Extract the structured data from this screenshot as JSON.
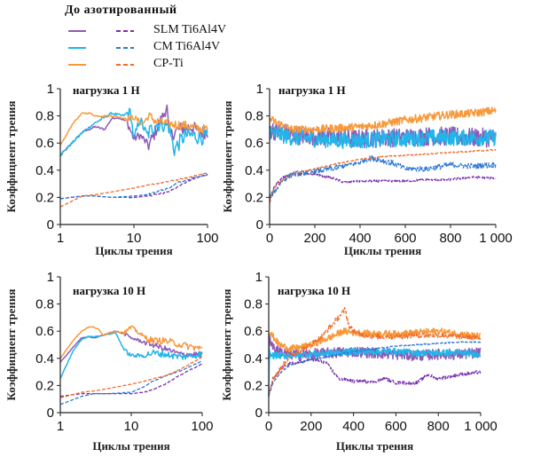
{
  "legend": {
    "title": "До  азотированный",
    "entries": [
      {
        "label": "SLM Ti6Al4V",
        "solid_color": "#8e5bb5",
        "dashed_color": "#7a2fb0"
      },
      {
        "label": "CM Ti6Al4V",
        "solid_color": "#22b5ea",
        "dashed_color": "#2c78d4"
      },
      {
        "label": "CP-Ti",
        "solid_color": "#f7993b",
        "dashed_color": "#f26b2a"
      }
    ]
  },
  "chart_data": [
    {
      "type": "line",
      "panel": "top-left",
      "title": "нагрузка 1 Н",
      "xlabel": "Циклы трения",
      "ylabel": "Коэффициент трения",
      "xscale": "log",
      "xlim": [
        1,
        100
      ],
      "ylim": [
        0,
        1
      ],
      "xticks": [
        "1",
        "10",
        "100"
      ],
      "yticks": [
        "0",
        "0.2",
        "0.4",
        "0.6",
        "0.8",
        "1"
      ],
      "series": [
        {
          "name": "SLM Ti6Al4V до",
          "style": "solid",
          "noise": 0.05,
          "x": [
            1,
            2,
            3,
            4,
            5,
            6,
            8,
            10,
            12,
            16,
            20,
            25,
            28,
            30,
            40,
            60,
            80,
            100
          ],
          "y": [
            0.51,
            0.68,
            0.72,
            0.7,
            0.78,
            0.79,
            0.76,
            0.63,
            0.66,
            0.58,
            0.7,
            0.8,
            0.88,
            0.65,
            0.7,
            0.72,
            0.68,
            0.68
          ]
        },
        {
          "name": "CM Ti6Al4V до",
          "style": "solid",
          "noise": 0.06,
          "x": [
            1,
            2,
            3,
            5,
            7,
            9,
            10,
            12,
            15,
            20,
            25,
            30,
            35,
            50,
            70,
            100
          ],
          "y": [
            0.51,
            0.68,
            0.75,
            0.82,
            0.8,
            0.83,
            0.62,
            0.78,
            0.66,
            0.74,
            0.74,
            0.72,
            0.55,
            0.66,
            0.65,
            0.64
          ]
        },
        {
          "name": "CP-Ti до",
          "style": "solid",
          "noise": 0.035,
          "x": [
            1,
            1.5,
            2,
            2.5,
            3,
            5,
            8,
            10,
            13,
            16,
            20,
            30,
            50,
            70,
            100
          ],
          "y": [
            0.58,
            0.75,
            0.82,
            0.82,
            0.8,
            0.8,
            0.78,
            0.79,
            0.74,
            0.8,
            0.76,
            0.74,
            0.73,
            0.71,
            0.7
          ]
        },
        {
          "name": "SLM Ti6Al4V азотированный",
          "style": "dashed",
          "noise": 0.005,
          "x": [
            1,
            2,
            3,
            5,
            10,
            15,
            20,
            30,
            40,
            60,
            100
          ],
          "y": [
            0.19,
            0.21,
            0.21,
            0.2,
            0.2,
            0.21,
            0.22,
            0.24,
            0.28,
            0.33,
            0.37
          ]
        },
        {
          "name": "CM Ti6Al4V азотированный",
          "style": "dashed",
          "noise": 0.005,
          "x": [
            1,
            2,
            3,
            5,
            10,
            15,
            20,
            30,
            40,
            60,
            100
          ],
          "y": [
            0.19,
            0.21,
            0.21,
            0.2,
            0.21,
            0.22,
            0.24,
            0.27,
            0.31,
            0.34,
            0.37
          ]
        },
        {
          "name": "CP-Ti азотированный",
          "style": "dashed",
          "noise": 0.004,
          "x": [
            1,
            2,
            3,
            5,
            10,
            20,
            40,
            100
          ],
          "y": [
            0.13,
            0.21,
            0.22,
            0.24,
            0.27,
            0.3,
            0.33,
            0.38
          ]
        }
      ]
    },
    {
      "type": "line",
      "panel": "top-right",
      "title": "нагрузка 1 Н",
      "xlabel": "Циклы трения",
      "ylabel": "Коэффициент трения",
      "xscale": "linear",
      "xlim": [
        0,
        1000
      ],
      "ylim": [
        0,
        1
      ],
      "xticks": [
        "0",
        "200",
        "400",
        "600",
        "800",
        "1 000"
      ],
      "yticks": [
        "0",
        "0.2",
        "0.4",
        "0.6",
        "0.8",
        "1"
      ],
      "series": [
        {
          "name": "SLM Ti6Al4V до",
          "style": "solid",
          "noise": 0.07,
          "x": [
            0,
            50,
            100,
            200,
            300,
            400,
            500,
            600,
            700,
            800,
            900,
            1000
          ],
          "y": [
            0.7,
            0.68,
            0.66,
            0.65,
            0.64,
            0.63,
            0.64,
            0.64,
            0.65,
            0.65,
            0.64,
            0.64
          ]
        },
        {
          "name": "CM Ti6Al4V до",
          "style": "solid",
          "noise": 0.06,
          "x": [
            0,
            50,
            100,
            200,
            300,
            400,
            500,
            600,
            700,
            800,
            900,
            1000
          ],
          "y": [
            0.68,
            0.66,
            0.64,
            0.63,
            0.62,
            0.62,
            0.63,
            0.63,
            0.64,
            0.64,
            0.64,
            0.64
          ]
        },
        {
          "name": "CP-Ti до",
          "style": "solid",
          "noise": 0.03,
          "x": [
            0,
            20,
            100,
            200,
            300,
            400,
            500,
            600,
            700,
            800,
            900,
            1000
          ],
          "y": [
            0.78,
            0.76,
            0.7,
            0.7,
            0.71,
            0.72,
            0.74,
            0.77,
            0.79,
            0.81,
            0.82,
            0.84
          ]
        },
        {
          "name": "SLM Ti6Al4V азотированный",
          "style": "dashed",
          "noise": 0.008,
          "x": [
            0,
            20,
            60,
            100,
            200,
            280,
            330,
            400,
            500,
            600,
            700,
            800,
            900,
            1000
          ],
          "y": [
            0.18,
            0.28,
            0.35,
            0.37,
            0.37,
            0.34,
            0.31,
            0.32,
            0.32,
            0.32,
            0.33,
            0.33,
            0.35,
            0.34
          ]
        },
        {
          "name": "CM Ti6Al4V азотированный",
          "style": "dashed",
          "noise": 0.02,
          "x": [
            0,
            20,
            60,
            100,
            200,
            300,
            400,
            450,
            500,
            550,
            600,
            700,
            800,
            900,
            1000
          ],
          "y": [
            0.2,
            0.24,
            0.33,
            0.37,
            0.39,
            0.42,
            0.46,
            0.49,
            0.47,
            0.45,
            0.41,
            0.41,
            0.44,
            0.43,
            0.44
          ]
        },
        {
          "name": "CP-Ti азотированный",
          "style": "dashed",
          "noise": 0.004,
          "x": [
            0,
            20,
            60,
            100,
            200,
            300,
            400,
            500,
            600,
            700,
            800,
            900,
            1000
          ],
          "y": [
            0.16,
            0.27,
            0.33,
            0.37,
            0.41,
            0.45,
            0.48,
            0.5,
            0.51,
            0.52,
            0.53,
            0.54,
            0.55
          ]
        }
      ]
    },
    {
      "type": "line",
      "panel": "bottom-left",
      "title": "нагрузка 10 Н",
      "xlabel": "Циклы трения",
      "ylabel": "Коэффициент трения",
      "xscale": "log",
      "xlim": [
        1,
        100
      ],
      "ylim": [
        0,
        1
      ],
      "xticks": [
        "1",
        "10",
        "100"
      ],
      "yticks": [
        "0",
        "0.2",
        "0.4",
        "0.6",
        "0.8",
        "1"
      ],
      "series": [
        {
          "name": "SLM Ti6Al4V до",
          "style": "solid",
          "noise": 0.02,
          "x": [
            1,
            1.5,
            2,
            2.5,
            3,
            4,
            5,
            6,
            8,
            10,
            15,
            20,
            30,
            50,
            100
          ],
          "y": [
            0.37,
            0.48,
            0.55,
            0.56,
            0.55,
            0.57,
            0.59,
            0.6,
            0.58,
            0.55,
            0.52,
            0.5,
            0.47,
            0.43,
            0.43
          ]
        },
        {
          "name": "CM Ti6Al4V до",
          "style": "solid",
          "noise": 0.025,
          "x": [
            1,
            1.5,
            2,
            2.5,
            3,
            4,
            5,
            6,
            7,
            8,
            10,
            15,
            20,
            30,
            50,
            100
          ],
          "y": [
            0.25,
            0.45,
            0.54,
            0.56,
            0.56,
            0.57,
            0.58,
            0.59,
            0.52,
            0.46,
            0.42,
            0.42,
            0.44,
            0.43,
            0.41,
            0.43
          ]
        },
        {
          "name": "CP-Ti до",
          "style": "solid",
          "noise": 0.025,
          "x": [
            1,
            1.5,
            2,
            2.5,
            3,
            3.5,
            4,
            5,
            6,
            8,
            10,
            12,
            15,
            20,
            30,
            50,
            100
          ],
          "y": [
            0.4,
            0.53,
            0.6,
            0.63,
            0.63,
            0.61,
            0.57,
            0.59,
            0.6,
            0.59,
            0.63,
            0.6,
            0.56,
            0.53,
            0.53,
            0.5,
            0.47
          ]
        },
        {
          "name": "SLM Ti6Al4V азотированный",
          "style": "dashed",
          "noise": 0.003,
          "x": [
            1,
            2,
            3,
            5,
            10,
            15,
            20,
            30,
            50,
            100
          ],
          "y": [
            0.12,
            0.14,
            0.14,
            0.14,
            0.14,
            0.15,
            0.17,
            0.21,
            0.28,
            0.36
          ]
        },
        {
          "name": "CM Ti6Al4V азотированный",
          "style": "dashed",
          "noise": 0.003,
          "x": [
            1,
            2,
            3,
            5,
            10,
            15,
            20,
            30,
            50,
            100
          ],
          "y": [
            0.06,
            0.12,
            0.14,
            0.14,
            0.15,
            0.19,
            0.23,
            0.27,
            0.31,
            0.38
          ]
        },
        {
          "name": "CP-Ti азотированный",
          "style": "dashed",
          "noise": 0.003,
          "x": [
            1,
            2,
            3,
            5,
            10,
            15,
            20,
            30,
            50,
            100
          ],
          "y": [
            0.11,
            0.15,
            0.16,
            0.18,
            0.21,
            0.23,
            0.25,
            0.27,
            0.32,
            0.41
          ]
        }
      ]
    },
    {
      "type": "line",
      "panel": "bottom-right",
      "title": "нагрузка 10 Н",
      "xlabel": "Циклы трения",
      "ylabel": "Коэффициент трения",
      "xscale": "linear",
      "xlim": [
        0,
        1000
      ],
      "ylim": [
        0,
        1
      ],
      "xticks": [
        "0",
        "200",
        "400",
        "600",
        "800",
        "1 000"
      ],
      "yticks": [
        "0",
        "0.2",
        "0.4",
        "0.6",
        "0.8",
        "1"
      ],
      "series": [
        {
          "name": "SLM Ti6Al4V до",
          "style": "solid",
          "noise": 0.04,
          "x": [
            0,
            5,
            30,
            100,
            200,
            300,
            400,
            500,
            600,
            700,
            800,
            900,
            1000
          ],
          "y": [
            0.4,
            0.55,
            0.46,
            0.43,
            0.43,
            0.44,
            0.45,
            0.44,
            0.43,
            0.42,
            0.43,
            0.43,
            0.44
          ]
        },
        {
          "name": "CM Ti6Al4V до",
          "style": "solid",
          "noise": 0.025,
          "x": [
            0,
            3,
            10,
            50,
            100,
            200,
            300,
            400,
            500,
            600,
            700,
            800,
            900,
            1000
          ],
          "y": [
            0.1,
            0.45,
            0.42,
            0.42,
            0.42,
            0.43,
            0.44,
            0.45,
            0.45,
            0.45,
            0.44,
            0.44,
            0.44,
            0.43
          ]
        },
        {
          "name": "CP-Ti до",
          "style": "solid",
          "noise": 0.025,
          "x": [
            0,
            10,
            50,
            100,
            150,
            200,
            300,
            350,
            400,
            500,
            600,
            700,
            800,
            900,
            1000
          ],
          "y": [
            0.6,
            0.58,
            0.5,
            0.47,
            0.48,
            0.5,
            0.56,
            0.6,
            0.59,
            0.58,
            0.58,
            0.59,
            0.6,
            0.58,
            0.56
          ]
        },
        {
          "name": "SLM Ti6Al4V азотированный",
          "style": "dashed",
          "noise": 0.012,
          "x": [
            0,
            20,
            60,
            100,
            200,
            270,
            300,
            330,
            400,
            500,
            550,
            600,
            700,
            750,
            800,
            900,
            1000
          ],
          "y": [
            0.14,
            0.24,
            0.33,
            0.36,
            0.39,
            0.37,
            0.31,
            0.25,
            0.23,
            0.23,
            0.25,
            0.22,
            0.22,
            0.28,
            0.25,
            0.28,
            0.3
          ]
        },
        {
          "name": "CM Ti6Al4V азотированный",
          "style": "dashed",
          "noise": 0.004,
          "x": [
            0,
            20,
            60,
            100,
            200,
            300,
            400,
            500,
            600,
            700,
            800,
            900,
            1000
          ],
          "y": [
            0.12,
            0.22,
            0.3,
            0.35,
            0.39,
            0.42,
            0.45,
            0.47,
            0.49,
            0.5,
            0.51,
            0.52,
            0.52
          ]
        },
        {
          "name": "CP-Ti азотированный",
          "style": "dashed",
          "noise": 0.02,
          "x": [
            0,
            20,
            60,
            100,
            200,
            250,
            300,
            350,
            360,
            380,
            420,
            500,
            600,
            700,
            800,
            900,
            1000
          ],
          "y": [
            0.15,
            0.25,
            0.33,
            0.42,
            0.5,
            0.56,
            0.65,
            0.74,
            0.76,
            0.63,
            0.58,
            0.56,
            0.56,
            0.57,
            0.57,
            0.56,
            0.55
          ]
        }
      ]
    }
  ]
}
